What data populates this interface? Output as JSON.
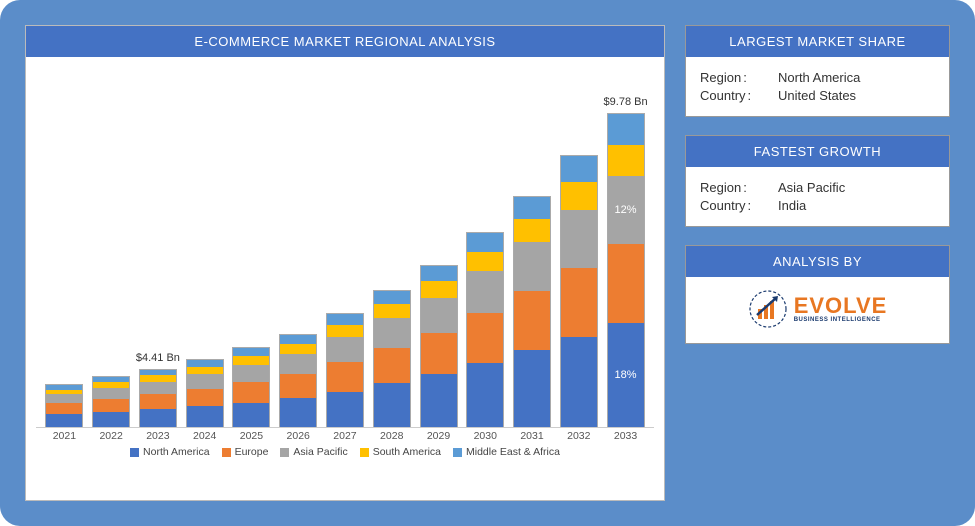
{
  "chart": {
    "type": "stacked-bar",
    "title": "E-COMMERCE MARKET REGIONAL ANALYSIS",
    "categories": [
      "2021",
      "2022",
      "2023",
      "2024",
      "2025",
      "2026",
      "2027",
      "2028",
      "2029",
      "2030",
      "2031",
      "2032",
      "2033"
    ],
    "series": [
      {
        "name": "North America",
        "color": "#4472c4",
        "values": [
          12,
          14,
          16,
          19,
          22,
          26,
          32,
          40,
          48,
          58,
          70,
          82,
          95
        ]
      },
      {
        "name": "Europe",
        "color": "#ed7d31",
        "values": [
          10,
          12,
          14,
          16,
          19,
          22,
          27,
          32,
          38,
          46,
          54,
          63,
          72
        ]
      },
      {
        "name": "Asia Pacific",
        "color": "#a5a5a5",
        "values": [
          8,
          10,
          11,
          13,
          16,
          19,
          23,
          27,
          32,
          38,
          45,
          53,
          62
        ]
      },
      {
        "name": "South America",
        "color": "#ffc000",
        "values": [
          4,
          5,
          6,
          7,
          8,
          9,
          11,
          13,
          15,
          18,
          21,
          25,
          28
        ]
      },
      {
        "name": "Middle East & Africa",
        "color": "#5b9bd5",
        "values": [
          4,
          5,
          5,
          6,
          7,
          8,
          10,
          12,
          14,
          17,
          20,
          24,
          28
        ]
      }
    ],
    "max_total": 310,
    "callouts": [
      {
        "year": "2023",
        "text": "$4.41 Bn"
      },
      {
        "year": "2033",
        "text": "$9.78 Bn"
      }
    ],
    "pct_labels": [
      {
        "year": "2033",
        "seg_index": 0,
        "text": "18%"
      },
      {
        "year": "2033",
        "seg_index": 2,
        "text": "12%"
      }
    ],
    "title_fontsize": 13,
    "axis_fontsize": 10.5,
    "background_color": "#ffffff",
    "border_color": "#bbbbbb",
    "canvas_color": "#5b8dc9"
  },
  "largest": {
    "title": "LARGEST MARKET SHARE",
    "region_label": "Region",
    "region_value": "North America",
    "country_label": "Country",
    "country_value": "United States"
  },
  "fastest": {
    "title": "FASTEST GROWTH",
    "region_label": "Region",
    "region_value": "Asia Pacific",
    "country_label": "Country",
    "country_value": "India"
  },
  "analysis": {
    "title": "ANALYSIS BY",
    "logo_main": "EVOLVE",
    "logo_sub": "BUSINESS INTELLIGENCE",
    "logo_orange": "#e87722",
    "logo_navy": "#1a3a6e"
  }
}
